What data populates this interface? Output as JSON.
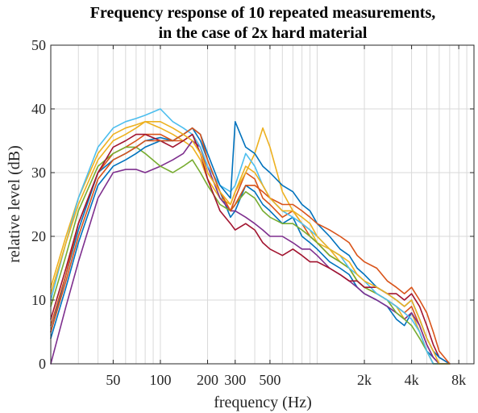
{
  "chart_data": {
    "type": "line",
    "title": [
      "Frequency response of 10 repeated measurements,",
      "in the case of 2x hard material"
    ],
    "xlabel": "frequency (Hz)",
    "ylabel": "relative level (dB)",
    "xscale": "log",
    "xlim": [
      20,
      10000
    ],
    "ylim": [
      0,
      50
    ],
    "grid": true,
    "legend": "none",
    "xticks": [
      {
        "value": 50,
        "label": "50"
      },
      {
        "value": 100,
        "label": "100"
      },
      {
        "value": 200,
        "label": "200"
      },
      {
        "value": 300,
        "label": "300"
      },
      {
        "value": 500,
        "label": "500"
      },
      {
        "value": 2000,
        "label": "2k"
      },
      {
        "value": 4000,
        "label": "4k"
      },
      {
        "value": 8000,
        "label": "8k"
      }
    ],
    "yticks": [
      0,
      10,
      20,
      30,
      40,
      50
    ],
    "x": [
      20,
      25,
      30,
      40,
      50,
      60,
      70,
      80,
      100,
      120,
      140,
      160,
      180,
      200,
      240,
      280,
      300,
      350,
      400,
      450,
      500,
      600,
      700,
      800,
      900,
      1000,
      1200,
      1400,
      1600,
      1800,
      2000,
      2400,
      2800,
      3200,
      3600,
      4000,
      4500,
      5000,
      5500,
      6000,
      7000
    ],
    "series": [
      {
        "color": "#0072BD",
        "values": [
          5,
          14,
          21,
          30,
          32,
          33,
          34,
          35,
          35.5,
          35,
          36,
          37,
          35,
          32,
          27,
          23,
          24,
          28,
          27,
          25,
          24,
          22,
          23,
          20,
          19,
          18,
          16,
          15,
          14,
          12,
          11,
          10,
          9,
          7,
          6,
          8,
          5,
          2,
          1,
          0,
          0
        ]
      },
      {
        "color": "#D95319",
        "values": [
          6,
          14,
          22,
          30,
          33,
          34,
          35,
          36,
          36,
          35,
          35,
          36,
          34,
          30,
          27,
          24,
          26,
          30,
          29,
          26,
          25,
          23,
          24,
          22,
          20,
          19,
          17,
          16,
          15,
          13,
          12,
          11,
          10,
          9,
          8,
          9,
          6,
          3,
          1,
          0,
          0
        ]
      },
      {
        "color": "#EDB120",
        "values": [
          12,
          20,
          26,
          33,
          36,
          37,
          37.5,
          38,
          37,
          36,
          35,
          34,
          32,
          29,
          26,
          25,
          27,
          30,
          33,
          37,
          34,
          27,
          24,
          22,
          21,
          19,
          18,
          16,
          15,
          13,
          12,
          11,
          10,
          9,
          7,
          8,
          5,
          2,
          0,
          0,
          0
        ]
      },
      {
        "color": "#7E2F8E",
        "values": [
          0,
          9,
          16,
          26,
          30,
          30.5,
          30.5,
          30,
          31,
          32,
          33,
          35,
          34,
          31,
          26,
          24,
          24,
          23,
          22,
          21,
          20,
          20,
          19,
          18,
          18,
          17,
          15,
          14,
          13,
          12,
          11,
          10,
          9,
          8,
          7,
          8,
          6,
          3,
          1,
          0,
          0
        ]
      },
      {
        "color": "#77AC30",
        "values": [
          9,
          17,
          24,
          31,
          33,
          34,
          34,
          33,
          31,
          30,
          31,
          32,
          30,
          28,
          25,
          24,
          25,
          27,
          26,
          24,
          23,
          22,
          22,
          21,
          20,
          19,
          17,
          16,
          15,
          13,
          12,
          11,
          10,
          8,
          7,
          6,
          4,
          2,
          0,
          0,
          0
        ]
      },
      {
        "color": "#4DBEEE",
        "values": [
          10,
          19,
          26,
          34,
          37,
          38,
          38.5,
          39,
          40,
          38,
          37,
          36,
          34,
          31,
          28,
          27,
          28,
          33,
          31,
          28,
          26,
          24,
          23,
          22,
          21,
          20,
          18,
          17,
          15,
          14,
          13,
          11,
          10,
          9,
          8,
          7,
          5,
          2,
          0,
          0,
          0
        ]
      },
      {
        "color": "#A2142F",
        "values": [
          7,
          15,
          22,
          30,
          34,
          35,
          36,
          36,
          35,
          34,
          35,
          36,
          33,
          29,
          24,
          22,
          21,
          22,
          21,
          19,
          18,
          17,
          18,
          17,
          16,
          16,
          15,
          14,
          13,
          13,
          12,
          12,
          11,
          11,
          10,
          11,
          9,
          6,
          3,
          1,
          0
        ]
      },
      {
        "color": "#0072BD",
        "values": [
          4,
          12,
          19,
          28,
          31,
          32,
          33,
          34,
          35,
          35,
          36,
          37,
          36,
          33,
          28,
          26,
          38,
          34,
          33,
          31,
          30,
          28,
          27,
          25,
          24,
          22,
          20,
          18,
          17,
          15,
          14,
          12,
          11,
          10,
          9,
          10,
          7,
          4,
          2,
          1,
          0
        ]
      },
      {
        "color": "#D95319",
        "values": [
          5,
          13,
          20,
          29,
          32,
          33,
          34,
          35,
          35,
          35,
          36,
          37,
          36,
          32,
          27,
          24,
          25,
          28,
          28,
          27,
          26,
          25,
          25,
          24,
          23,
          22,
          21,
          20,
          19,
          17,
          16,
          15,
          13,
          12,
          11,
          12,
          10,
          8,
          5,
          2,
          0
        ]
      },
      {
        "color": "#EDB120",
        "values": [
          11,
          19,
          25,
          32,
          35,
          36,
          37,
          38,
          38,
          37,
          36,
          35,
          33,
          30,
          27,
          25,
          27,
          31,
          30,
          28,
          26,
          24,
          24,
          23,
          22,
          20,
          18,
          17,
          16,
          14,
          13,
          12,
          11,
          10,
          9,
          10,
          7,
          4,
          2,
          0,
          0
        ]
      }
    ]
  }
}
